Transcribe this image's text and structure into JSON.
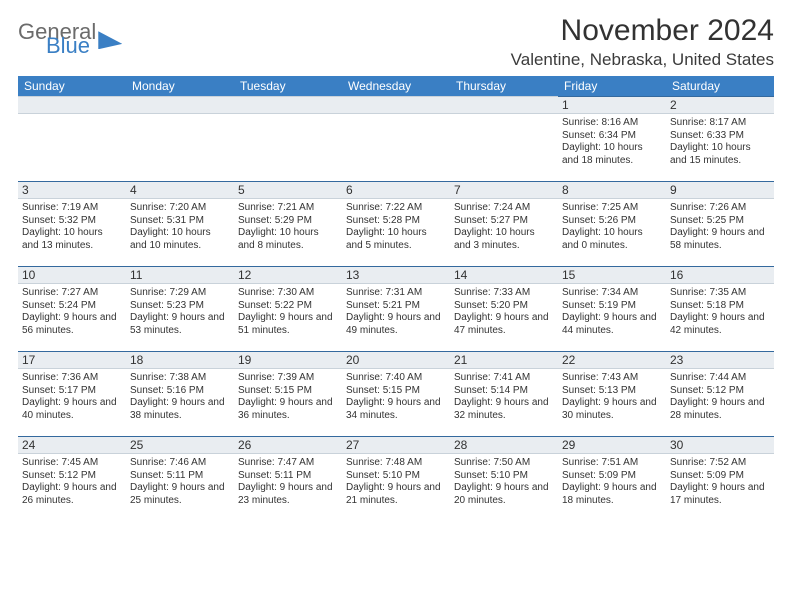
{
  "logo": {
    "line1": "General",
    "line2": "Blue"
  },
  "title": "November 2024",
  "location": "Valentine, Nebraska, United States",
  "headers": [
    "Sunday",
    "Monday",
    "Tuesday",
    "Wednesday",
    "Thursday",
    "Friday",
    "Saturday"
  ],
  "colors": {
    "header_bg": "#3a7fc4",
    "header_text": "#ffffff",
    "daynum_bg": "#e9edf1",
    "row_border": "#34699e",
    "text": "#333333",
    "logo_gray": "#6b6b6b",
    "logo_blue": "#3a7fc4",
    "page_bg": "#ffffff"
  },
  "weeks": [
    [
      {},
      {},
      {},
      {},
      {},
      {
        "day": "1",
        "sunrise": "Sunrise: 8:16 AM",
        "sunset": "Sunset: 6:34 PM",
        "daylight": "Daylight: 10 hours and 18 minutes."
      },
      {
        "day": "2",
        "sunrise": "Sunrise: 8:17 AM",
        "sunset": "Sunset: 6:33 PM",
        "daylight": "Daylight: 10 hours and 15 minutes."
      }
    ],
    [
      {
        "day": "3",
        "sunrise": "Sunrise: 7:19 AM",
        "sunset": "Sunset: 5:32 PM",
        "daylight": "Daylight: 10 hours and 13 minutes."
      },
      {
        "day": "4",
        "sunrise": "Sunrise: 7:20 AM",
        "sunset": "Sunset: 5:31 PM",
        "daylight": "Daylight: 10 hours and 10 minutes."
      },
      {
        "day": "5",
        "sunrise": "Sunrise: 7:21 AM",
        "sunset": "Sunset: 5:29 PM",
        "daylight": "Daylight: 10 hours and 8 minutes."
      },
      {
        "day": "6",
        "sunrise": "Sunrise: 7:22 AM",
        "sunset": "Sunset: 5:28 PM",
        "daylight": "Daylight: 10 hours and 5 minutes."
      },
      {
        "day": "7",
        "sunrise": "Sunrise: 7:24 AM",
        "sunset": "Sunset: 5:27 PM",
        "daylight": "Daylight: 10 hours and 3 minutes."
      },
      {
        "day": "8",
        "sunrise": "Sunrise: 7:25 AM",
        "sunset": "Sunset: 5:26 PM",
        "daylight": "Daylight: 10 hours and 0 minutes."
      },
      {
        "day": "9",
        "sunrise": "Sunrise: 7:26 AM",
        "sunset": "Sunset: 5:25 PM",
        "daylight": "Daylight: 9 hours and 58 minutes."
      }
    ],
    [
      {
        "day": "10",
        "sunrise": "Sunrise: 7:27 AM",
        "sunset": "Sunset: 5:24 PM",
        "daylight": "Daylight: 9 hours and 56 minutes."
      },
      {
        "day": "11",
        "sunrise": "Sunrise: 7:29 AM",
        "sunset": "Sunset: 5:23 PM",
        "daylight": "Daylight: 9 hours and 53 minutes."
      },
      {
        "day": "12",
        "sunrise": "Sunrise: 7:30 AM",
        "sunset": "Sunset: 5:22 PM",
        "daylight": "Daylight: 9 hours and 51 minutes."
      },
      {
        "day": "13",
        "sunrise": "Sunrise: 7:31 AM",
        "sunset": "Sunset: 5:21 PM",
        "daylight": "Daylight: 9 hours and 49 minutes."
      },
      {
        "day": "14",
        "sunrise": "Sunrise: 7:33 AM",
        "sunset": "Sunset: 5:20 PM",
        "daylight": "Daylight: 9 hours and 47 minutes."
      },
      {
        "day": "15",
        "sunrise": "Sunrise: 7:34 AM",
        "sunset": "Sunset: 5:19 PM",
        "daylight": "Daylight: 9 hours and 44 minutes."
      },
      {
        "day": "16",
        "sunrise": "Sunrise: 7:35 AM",
        "sunset": "Sunset: 5:18 PM",
        "daylight": "Daylight: 9 hours and 42 minutes."
      }
    ],
    [
      {
        "day": "17",
        "sunrise": "Sunrise: 7:36 AM",
        "sunset": "Sunset: 5:17 PM",
        "daylight": "Daylight: 9 hours and 40 minutes."
      },
      {
        "day": "18",
        "sunrise": "Sunrise: 7:38 AM",
        "sunset": "Sunset: 5:16 PM",
        "daylight": "Daylight: 9 hours and 38 minutes."
      },
      {
        "day": "19",
        "sunrise": "Sunrise: 7:39 AM",
        "sunset": "Sunset: 5:15 PM",
        "daylight": "Daylight: 9 hours and 36 minutes."
      },
      {
        "day": "20",
        "sunrise": "Sunrise: 7:40 AM",
        "sunset": "Sunset: 5:15 PM",
        "daylight": "Daylight: 9 hours and 34 minutes."
      },
      {
        "day": "21",
        "sunrise": "Sunrise: 7:41 AM",
        "sunset": "Sunset: 5:14 PM",
        "daylight": "Daylight: 9 hours and 32 minutes."
      },
      {
        "day": "22",
        "sunrise": "Sunrise: 7:43 AM",
        "sunset": "Sunset: 5:13 PM",
        "daylight": "Daylight: 9 hours and 30 minutes."
      },
      {
        "day": "23",
        "sunrise": "Sunrise: 7:44 AM",
        "sunset": "Sunset: 5:12 PM",
        "daylight": "Daylight: 9 hours and 28 minutes."
      }
    ],
    [
      {
        "day": "24",
        "sunrise": "Sunrise: 7:45 AM",
        "sunset": "Sunset: 5:12 PM",
        "daylight": "Daylight: 9 hours and 26 minutes."
      },
      {
        "day": "25",
        "sunrise": "Sunrise: 7:46 AM",
        "sunset": "Sunset: 5:11 PM",
        "daylight": "Daylight: 9 hours and 25 minutes."
      },
      {
        "day": "26",
        "sunrise": "Sunrise: 7:47 AM",
        "sunset": "Sunset: 5:11 PM",
        "daylight": "Daylight: 9 hours and 23 minutes."
      },
      {
        "day": "27",
        "sunrise": "Sunrise: 7:48 AM",
        "sunset": "Sunset: 5:10 PM",
        "daylight": "Daylight: 9 hours and 21 minutes."
      },
      {
        "day": "28",
        "sunrise": "Sunrise: 7:50 AM",
        "sunset": "Sunset: 5:10 PM",
        "daylight": "Daylight: 9 hours and 20 minutes."
      },
      {
        "day": "29",
        "sunrise": "Sunrise: 7:51 AM",
        "sunset": "Sunset: 5:09 PM",
        "daylight": "Daylight: 9 hours and 18 minutes."
      },
      {
        "day": "30",
        "sunrise": "Sunrise: 7:52 AM",
        "sunset": "Sunset: 5:09 PM",
        "daylight": "Daylight: 9 hours and 17 minutes."
      }
    ]
  ]
}
